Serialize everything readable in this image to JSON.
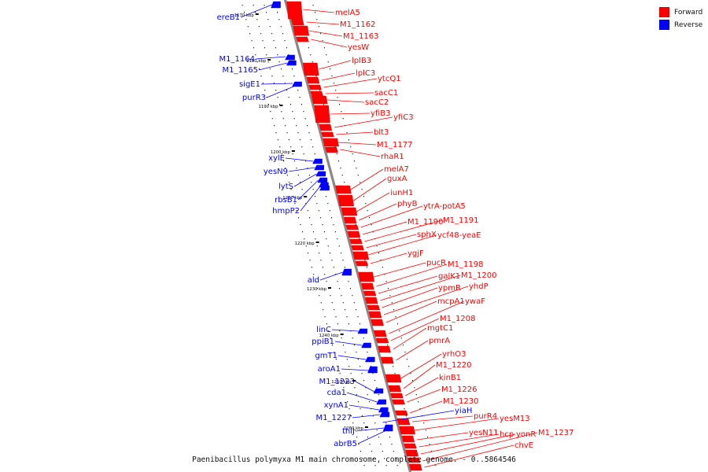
{
  "colors": {
    "forward": "#ff0000",
    "reverse": "#0000ff",
    "axis": "#888888",
    "dots": "#000000"
  },
  "legend": {
    "forward_label": "Forward",
    "reverse_label": "Reverse"
  },
  "caption": "Paenibacillus polymyxa M1 main chromosome, complete genome. - 0..5864546",
  "scale_labels": [
    "1170 kbp",
    "1180 kbp",
    "1190 kbp",
    "1200 kbp",
    "1210 kbp",
    "1220 kbp",
    "1230 kbp",
    "1240 kbp",
    "1250 kbp",
    "1260 kbp"
  ],
  "forward_genes": [
    "melA5",
    "M1_1162",
    "M1_1163",
    "yesW",
    "lplB3",
    "lplC3",
    "ytcQ1",
    "sacC1",
    "sacC2",
    "yfiB3",
    "yfiC3",
    "blt3",
    "M1_1177",
    "rhaR1",
    "melA7",
    "guxA",
    "iunH1",
    "phyB",
    "ytrA-potA5",
    "M1_1190",
    "M1_1191",
    "sphX",
    "ycf48-yeaE",
    "ygjF",
    "pucR",
    "M1_1198",
    "galK1",
    "M1_1200",
    "ypmR",
    "yhdP",
    "mcpA1",
    "ywaF",
    "M1_1208",
    "mgtC1",
    "pmrA",
    "yrhO3",
    "M1_1220",
    "kinB1",
    "M1_1226",
    "M1_1230",
    "purR4",
    "yesM13",
    "yesN11",
    "hcp",
    "yonR",
    "M1_1237",
    "chvE"
  ],
  "reverse_genes": [
    "ereB1",
    "M1_1164",
    "M1_1165",
    "sigE1",
    "purR3",
    "xylE",
    "yesN9",
    "lytS",
    "rbsB1",
    "hmpP2",
    "ald",
    "linC",
    "ppiB1",
    "gmT1",
    "aroA1",
    "M1_1223",
    "cda1",
    "xynA1",
    "M1_1227",
    "thiJ",
    "abrB5",
    "yiaH"
  ]
}
